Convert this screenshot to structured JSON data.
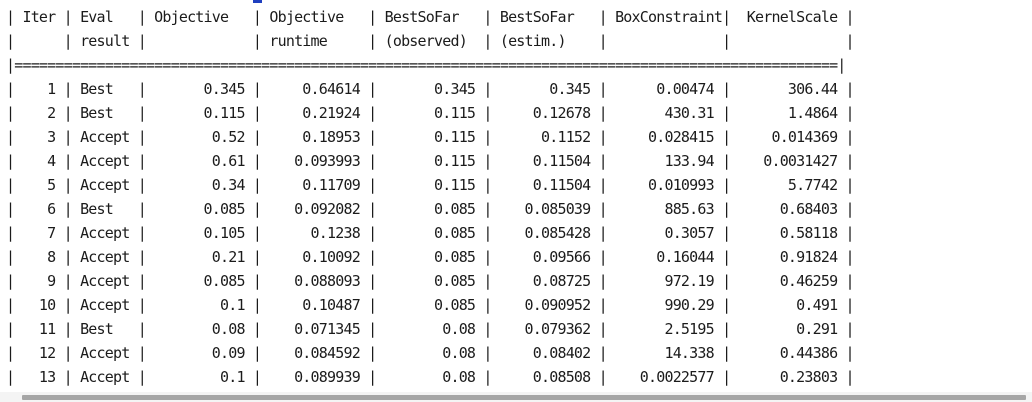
{
  "theme": {
    "accent_color": "#1f3fbf",
    "text_color": "#1b1b1b",
    "scrollbar_track": "#f4f4f4",
    "scrollbar_thumb": "#a6a6a6"
  },
  "console": {
    "lines": [
      "| Iter | Eval   | Objective   | Objective   | BestSoFar   | BestSoFar   | BoxConstraint|  KernelScale |",
      "|      | result |             | runtime     | (observed)  | (estim.)    |              |              |",
      "|====================================================================================================|",
      "|    1 | Best   |       0.345 |     0.64614 |       0.345 |       0.345 |      0.00474 |       306.44 |",
      "|    2 | Best   |       0.115 |     0.21924 |       0.115 |     0.12678 |       430.31 |       1.4864 |",
      "|    3 | Accept |        0.52 |     0.18953 |       0.115 |      0.1152 |     0.028415 |     0.014369 |",
      "|    4 | Accept |        0.61 |    0.093993 |       0.115 |     0.11504 |       133.94 |    0.0031427 |",
      "|    5 | Accept |        0.34 |     0.11709 |       0.115 |     0.11504 |     0.010993 |       5.7742 |",
      "|    6 | Best   |       0.085 |    0.092082 |       0.085 |    0.085039 |       885.63 |      0.68403 |",
      "|    7 | Accept |       0.105 |      0.1238 |       0.085 |    0.085428 |       0.3057 |      0.58118 |",
      "|    8 | Accept |        0.21 |     0.10092 |       0.085 |     0.09566 |      0.16044 |      0.91824 |",
      "|    9 | Accept |       0.085 |    0.088093 |       0.085 |     0.08725 |       972.19 |      0.46259 |",
      "|   10 | Accept |         0.1 |     0.10487 |       0.085 |    0.090952 |       990.29 |        0.491 |",
      "|   11 | Best   |        0.08 |    0.071345 |        0.08 |    0.079362 |       2.5195 |        0.291 |",
      "|   12 | Accept |        0.09 |    0.084592 |        0.08 |     0.08402 |       14.338 |      0.44386 |",
      "|   13 | Accept |         0.1 |    0.089939 |        0.08 |     0.08508 |    0.0022577 |      0.23803 |"
    ]
  }
}
